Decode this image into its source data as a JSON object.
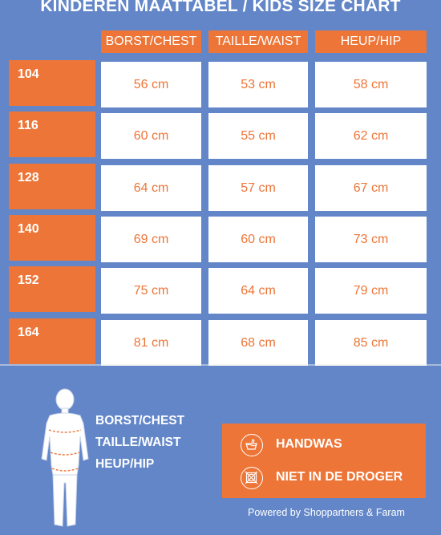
{
  "title": "KINDEREN MAATTABEL / KIDS SIZE CHART",
  "columns": [
    "BORST/CHEST",
    "TAILLE/WAIST",
    "HEUP/HIP"
  ],
  "rows": [
    {
      "size": "104",
      "chest": "56 cm",
      "waist": "53 cm",
      "hip": "58 cm"
    },
    {
      "size": "116",
      "chest": "60 cm",
      "waist": "55 cm",
      "hip": "62 cm"
    },
    {
      "size": "128",
      "chest": "64 cm",
      "waist": "57 cm",
      "hip": "67 cm"
    },
    {
      "size": "140",
      "chest": "69 cm",
      "waist": "60 cm",
      "hip": "73 cm"
    },
    {
      "size": "152",
      "chest": "75 cm",
      "waist": "64 cm",
      "hip": "79 cm"
    },
    {
      "size": "164",
      "chest": "81 cm",
      "waist": "68 cm",
      "hip": "85 cm"
    }
  ],
  "legend": [
    "BORST/CHEST",
    "TAILLE/WAIST",
    "HEUP/HIP"
  ],
  "care": [
    {
      "icon": "handwash-icon",
      "label": "HANDWAS"
    },
    {
      "icon": "no-tumble-dry-icon",
      "label": "NIET IN DE DROGER"
    }
  ],
  "footer": "Powered by Shoppartners & Faram",
  "colors": {
    "background": "#6286c8",
    "accent": "#ed7537",
    "cell": "#ffffff"
  }
}
